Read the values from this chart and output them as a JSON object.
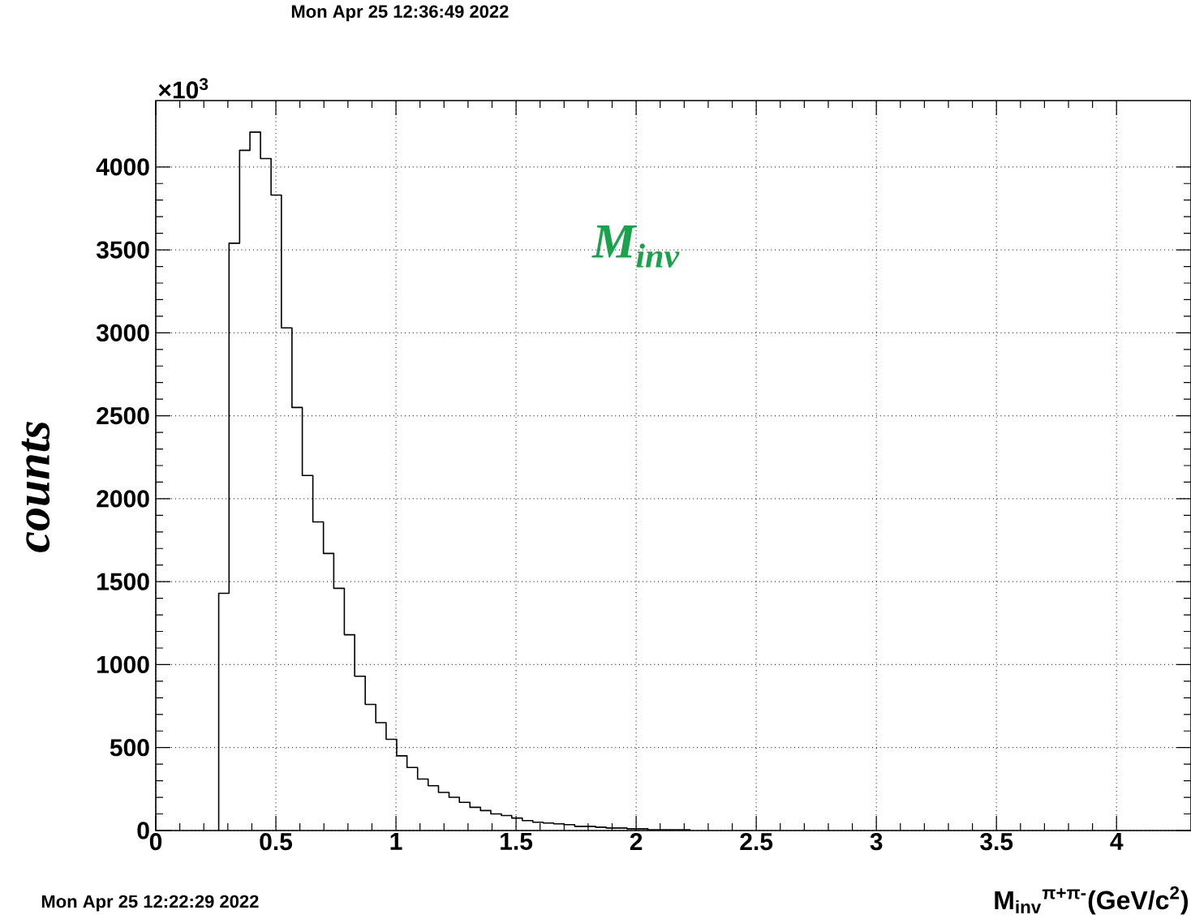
{
  "chart_data": {
    "type": "histogram",
    "title": "M$_{inv}$",
    "xlabel": "M$_{inv}$$^{π+π-}$(GeV/c$^{2}$)",
    "ylabel": "counts",
    "annotations": [
      "Mon Apr 25 12:36:49 2022",
      "Mon Apr 25 12:22:29 2022",
      "×10$^{3}$"
    ],
    "bins": [
      0.262,
      0.305,
      0.349,
      0.392,
      0.436,
      0.48,
      0.523,
      0.567,
      0.61,
      0.654,
      0.698,
      0.741,
      0.785,
      0.828,
      0.872,
      0.916,
      0.959,
      1.003,
      1.046,
      1.09,
      1.134,
      1.177,
      1.221,
      1.264,
      1.308,
      1.352,
      1.395,
      1.439,
      1.482,
      1.526,
      1.57,
      1.613,
      1.657,
      1.7,
      1.744,
      1.788,
      1.831,
      1.875,
      1.918,
      1.962,
      2.006,
      2.049,
      2.093,
      2.136,
      2.18,
      2.224
    ],
    "values": [
      1430,
      3540,
      4100,
      4210,
      4050,
      3830,
      3030,
      2550,
      2140,
      1860,
      1670,
      1460,
      1180,
      930,
      760,
      650,
      550,
      450,
      380,
      310,
      270,
      230,
      200,
      170,
      140,
      120,
      100,
      90,
      75,
      60,
      50,
      45,
      40,
      35,
      25,
      25,
      20,
      15,
      15,
      10,
      10,
      5,
      5,
      5,
      5
    ],
    "color": "#000000",
    "xlim": [
      0,
      4.31
    ],
    "ylim": [
      0,
      4400
    ],
    "xticks": [
      0,
      0.5,
      1,
      1.5,
      2,
      2.5,
      3,
      3.5,
      4
    ],
    "yticks": [
      0,
      500,
      1000,
      1500,
      2000,
      2500,
      3000,
      3500,
      4000
    ],
    "grid": true
  }
}
